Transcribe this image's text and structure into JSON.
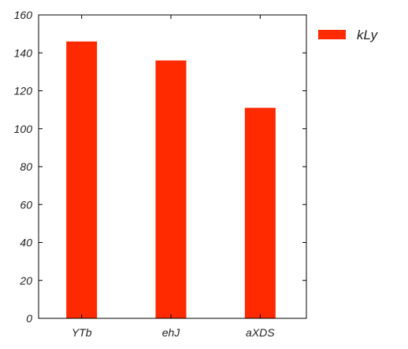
{
  "chart_data": {
    "type": "bar",
    "categories": [
      "YTb",
      "ehJ",
      "aXDS"
    ],
    "series": [
      {
        "name": "kLy",
        "values": [
          146,
          136,
          111
        ]
      }
    ],
    "ylim": [
      0,
      160
    ],
    "yticks": [
      0,
      20,
      40,
      60,
      80,
      100,
      120,
      140,
      160
    ],
    "grid": false,
    "legend_position": "outside-right",
    "colors": {
      "bar": "#ff2a00",
      "axis": "#000000",
      "text": "#222222"
    }
  }
}
